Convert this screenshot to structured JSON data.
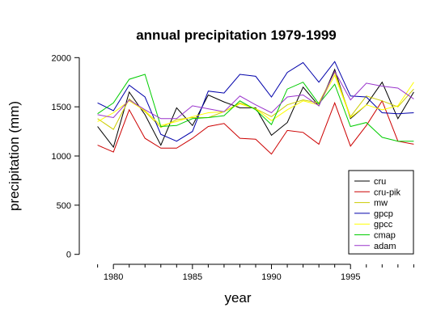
{
  "chart_data": {
    "type": "line",
    "title": "annual precipitation 1979-1999",
    "xlabel": "year",
    "ylabel": "precipitation (mm)",
    "xlim": [
      1978.2,
      1999.8
    ],
    "ylim": [
      -60,
      2060
    ],
    "xticks": [
      1980,
      1985,
      1990,
      1995
    ],
    "yticks": [
      0,
      500,
      1000,
      1500,
      2000
    ],
    "x": [
      1979,
      1980,
      1981,
      1982,
      1983,
      1984,
      1985,
      1986,
      1987,
      1988,
      1989,
      1990,
      1991,
      1992,
      1993,
      1994,
      1995,
      1996,
      1997,
      1998,
      1999
    ],
    "legend_position": "bottom-right",
    "series": [
      {
        "name": "cru",
        "color": "#000000",
        "values": [
          1300,
          1090,
          1650,
          1420,
          1110,
          1490,
          1310,
          1620,
          1550,
          1490,
          1490,
          1210,
          1340,
          1700,
          1510,
          1880,
          1380,
          1520,
          1750,
          1380,
          1650
        ]
      },
      {
        "name": "cru-pik",
        "color": "#cc0000",
        "values": [
          1110,
          1040,
          1470,
          1180,
          1080,
          1080,
          1180,
          1300,
          1330,
          1180,
          1170,
          1020,
          1260,
          1240,
          1120,
          1540,
          1100,
          1310,
          1560,
          1150,
          1120
        ]
      },
      {
        "name": "mw",
        "color": "#cccc00",
        "values": [
          1380,
          1270,
          1580,
          1450,
          1290,
          1370,
          1390,
          1390,
          1450,
          1540,
          1480,
          1400,
          1520,
          1570,
          1540,
          1850,
          1400,
          1610,
          1560,
          1500,
          1680
        ]
      },
      {
        "name": "gpcp",
        "color": "#0000aa",
        "values": [
          1540,
          1460,
          1720,
          1600,
          1220,
          1150,
          1250,
          1660,
          1640,
          1830,
          1810,
          1600,
          1850,
          1950,
          1750,
          1960,
          1610,
          1600,
          1440,
          1430,
          1440
        ]
      },
      {
        "name": "gpcc",
        "color": "#ffff00",
        "values": [
          1350,
          1440,
          1560,
          1460,
          1310,
          1350,
          1400,
          1440,
          1450,
          1530,
          1480,
          1360,
          1470,
          1560,
          1520,
          1820,
          1390,
          1520,
          1470,
          1510,
          1750
        ]
      },
      {
        "name": "cmap",
        "color": "#00cc00",
        "values": [
          1430,
          1540,
          1780,
          1830,
          1300,
          1310,
          1380,
          1390,
          1410,
          1560,
          1470,
          1320,
          1680,
          1750,
          1530,
          1730,
          1300,
          1340,
          1190,
          1150,
          1150
        ]
      },
      {
        "name": "adam",
        "color": "#9933cc",
        "values": [
          1420,
          1390,
          1570,
          1470,
          1380,
          1380,
          1510,
          1480,
          1450,
          1610,
          1520,
          1440,
          1600,
          1620,
          1510,
          1860,
          1570,
          1740,
          1710,
          1690,
          1580
        ]
      }
    ]
  }
}
